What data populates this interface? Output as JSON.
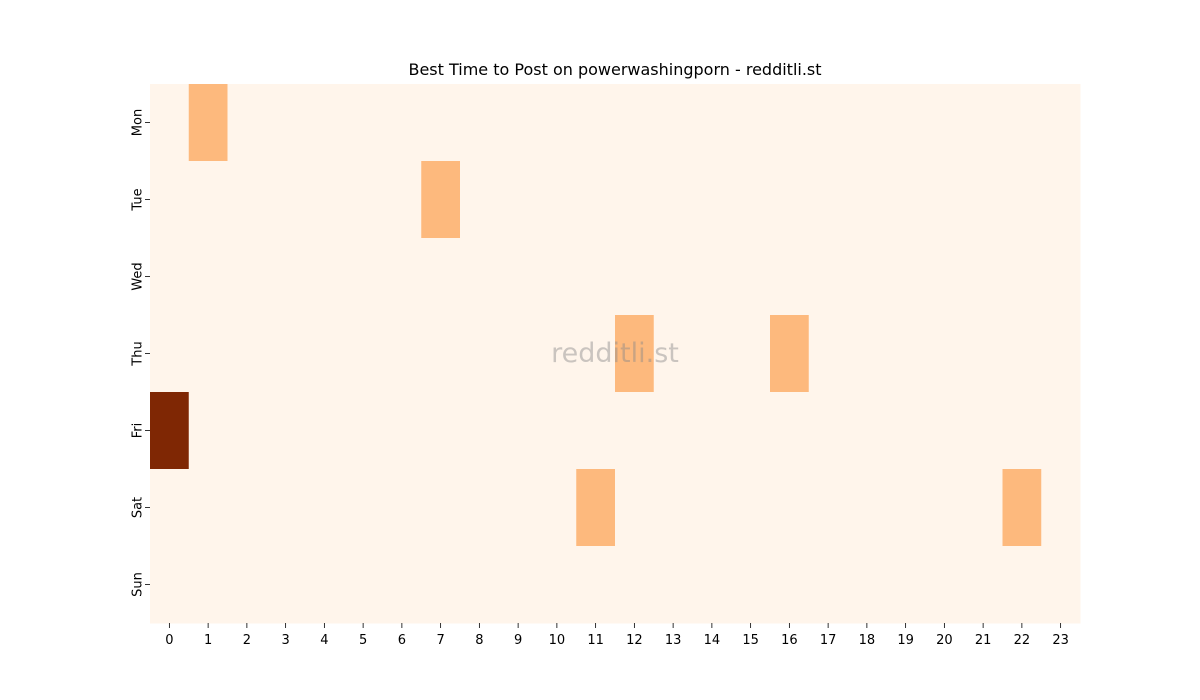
{
  "chart_data": {
    "type": "heatmap",
    "title": "Best Time to Post on powerwashingporn - redditli.st",
    "xlabel": "",
    "ylabel": "",
    "x_categories": [
      "0",
      "1",
      "2",
      "3",
      "4",
      "5",
      "6",
      "7",
      "8",
      "9",
      "10",
      "11",
      "12",
      "13",
      "14",
      "15",
      "16",
      "17",
      "18",
      "19",
      "20",
      "21",
      "22",
      "23"
    ],
    "y_categories": [
      "Mon",
      "Tue",
      "Wed",
      "Thu",
      "Fri",
      "Sat",
      "Sun"
    ],
    "values": [
      [
        0,
        1,
        0,
        0,
        0,
        0,
        0,
        0,
        0,
        0,
        0,
        0,
        0,
        0,
        0,
        0,
        0,
        0,
        0,
        0,
        0,
        0,
        0,
        0
      ],
      [
        0,
        0,
        0,
        0,
        0,
        0,
        0,
        1,
        0,
        0,
        0,
        0,
        0,
        0,
        0,
        0,
        0,
        0,
        0,
        0,
        0,
        0,
        0,
        0
      ],
      [
        0,
        0,
        0,
        0,
        0,
        0,
        0,
        0,
        0,
        0,
        0,
        0,
        0,
        0,
        0,
        0,
        0,
        0,
        0,
        0,
        0,
        0,
        0,
        0
      ],
      [
        0,
        0,
        0,
        0,
        0,
        0,
        0,
        0,
        0,
        0,
        0,
        0,
        1,
        0,
        0,
        0,
        1,
        0,
        0,
        0,
        0,
        0,
        0,
        0
      ],
      [
        4,
        0,
        0,
        0,
        0,
        0,
        0,
        0,
        0,
        0,
        0,
        0,
        0,
        0,
        0,
        0,
        0,
        0,
        0,
        0,
        0,
        0,
        0,
        0
      ],
      [
        0,
        0,
        0,
        0,
        0,
        0,
        0,
        0,
        0,
        0,
        0,
        1,
        0,
        0,
        0,
        0,
        0,
        0,
        0,
        0,
        0,
        0,
        1,
        0
      ],
      [
        0,
        0,
        0,
        0,
        0,
        0,
        0,
        0,
        0,
        0,
        0,
        0,
        0,
        0,
        0,
        0,
        0,
        0,
        0,
        0,
        0,
        0,
        0,
        0
      ]
    ],
    "colormap": "Oranges",
    "colorbar": false,
    "color_scale": {
      "0": "#fff5eb",
      "1": "#fdb97d",
      "4": "#7f2704"
    },
    "watermark": "redditli.st"
  }
}
